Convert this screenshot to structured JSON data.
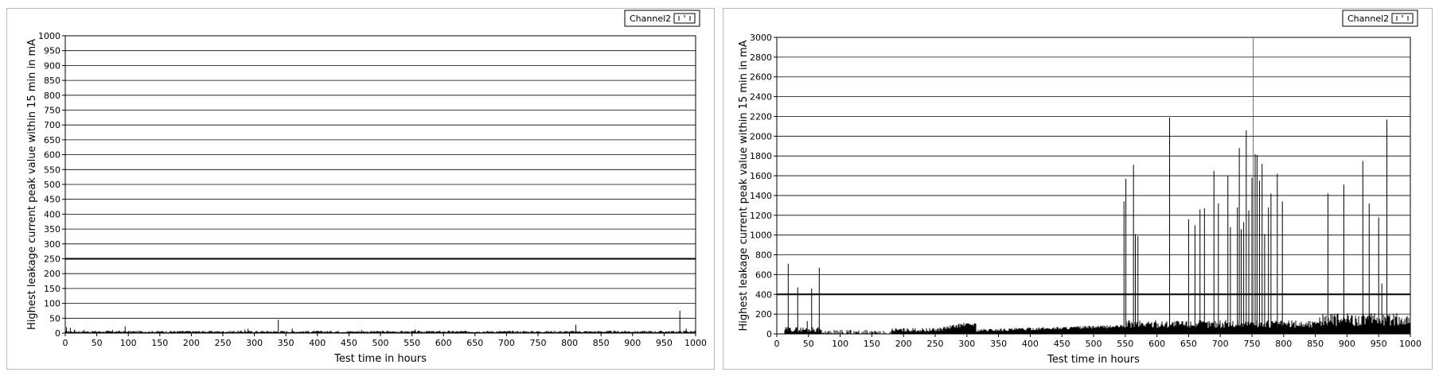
{
  "chart_data": [
    {
      "type": "bar",
      "xlabel": "Test time in hours",
      "ylabel": "Highest leakage current peak value within 15 min in mA",
      "xlim": [
        0,
        1000
      ],
      "ylim": [
        0,
        1000
      ],
      "xticks": [
        0,
        50,
        100,
        150,
        200,
        250,
        300,
        350,
        400,
        450,
        500,
        550,
        600,
        650,
        700,
        750,
        800,
        850,
        900,
        950,
        1000
      ],
      "yticks": [
        0,
        50,
        100,
        150,
        200,
        250,
        300,
        350,
        400,
        450,
        500,
        550,
        600,
        650,
        700,
        750,
        800,
        850,
        900,
        950,
        1000
      ],
      "grid": true,
      "legend": {
        "position": "top-right",
        "entries": [
          "Channel2"
        ]
      },
      "threshold": 250,
      "series": [
        {
          "name": "Channel2",
          "spikes": [
            {
              "x": 2,
              "y": 20
            },
            {
              "x": 8,
              "y": 18
            },
            {
              "x": 15,
              "y": 12
            },
            {
              "x": 30,
              "y": 10
            },
            {
              "x": 75,
              "y": 10
            },
            {
              "x": 95,
              "y": 22
            },
            {
              "x": 285,
              "y": 12
            },
            {
              "x": 290,
              "y": 15
            },
            {
              "x": 338,
              "y": 45
            },
            {
              "x": 360,
              "y": 15
            },
            {
              "x": 470,
              "y": 10
            },
            {
              "x": 555,
              "y": 12
            },
            {
              "x": 810,
              "y": 28
            },
            {
              "x": 975,
              "y": 75
            },
            {
              "x": 985,
              "y": 15
            }
          ]
        }
      ]
    },
    {
      "type": "bar",
      "xlabel": "Test time in hours",
      "ylabel": "Highest leakage current peak value within 15 min in mA",
      "xlim": [
        0,
        1000
      ],
      "ylim": [
        0,
        3000
      ],
      "xticks": [
        0,
        50,
        100,
        150,
        200,
        250,
        300,
        350,
        400,
        450,
        500,
        550,
        600,
        650,
        700,
        750,
        800,
        850,
        900,
        950,
        1000
      ],
      "yticks": [
        0,
        200,
        400,
        600,
        800,
        1000,
        1200,
        1400,
        1600,
        1800,
        2000,
        2200,
        2400,
        2600,
        2800,
        3000
      ],
      "grid": true,
      "legend": {
        "position": "top-right",
        "entries": [
          "Channel2"
        ]
      },
      "threshold": 400,
      "cursor_x": 752,
      "series": [
        {
          "name": "Channel2",
          "spikes": [
            {
              "x": 18,
              "y": 710
            },
            {
              "x": 33,
              "y": 470
            },
            {
              "x": 48,
              "y": 130
            },
            {
              "x": 55,
              "y": 460
            },
            {
              "x": 67,
              "y": 670
            },
            {
              "x": 548,
              "y": 1340
            },
            {
              "x": 551,
              "y": 1570
            },
            {
              "x": 563,
              "y": 1710
            },
            {
              "x": 566,
              "y": 1010
            },
            {
              "x": 570,
              "y": 990
            },
            {
              "x": 620,
              "y": 2190
            },
            {
              "x": 650,
              "y": 1160
            },
            {
              "x": 660,
              "y": 1100
            },
            {
              "x": 668,
              "y": 1260
            },
            {
              "x": 675,
              "y": 1270
            },
            {
              "x": 690,
              "y": 1650
            },
            {
              "x": 697,
              "y": 1320
            },
            {
              "x": 712,
              "y": 1600
            },
            {
              "x": 716,
              "y": 1080
            },
            {
              "x": 727,
              "y": 1280
            },
            {
              "x": 730,
              "y": 1880
            },
            {
              "x": 733,
              "y": 1060
            },
            {
              "x": 737,
              "y": 1130
            },
            {
              "x": 741,
              "y": 2060
            },
            {
              "x": 745,
              "y": 1250
            },
            {
              "x": 750,
              "y": 1580
            },
            {
              "x": 755,
              "y": 1820
            },
            {
              "x": 758,
              "y": 1810
            },
            {
              "x": 762,
              "y": 1550
            },
            {
              "x": 766,
              "y": 1720
            },
            {
              "x": 770,
              "y": 1010
            },
            {
              "x": 776,
              "y": 1280
            },
            {
              "x": 780,
              "y": 1420
            },
            {
              "x": 790,
              "y": 1620
            },
            {
              "x": 798,
              "y": 1340
            },
            {
              "x": 870,
              "y": 1420
            },
            {
              "x": 895,
              "y": 1510
            },
            {
              "x": 925,
              "y": 1750
            },
            {
              "x": 935,
              "y": 1320
            },
            {
              "x": 950,
              "y": 1180
            },
            {
              "x": 955,
              "y": 510
            },
            {
              "x": 963,
              "y": 2170
            }
          ]
        }
      ]
    }
  ]
}
